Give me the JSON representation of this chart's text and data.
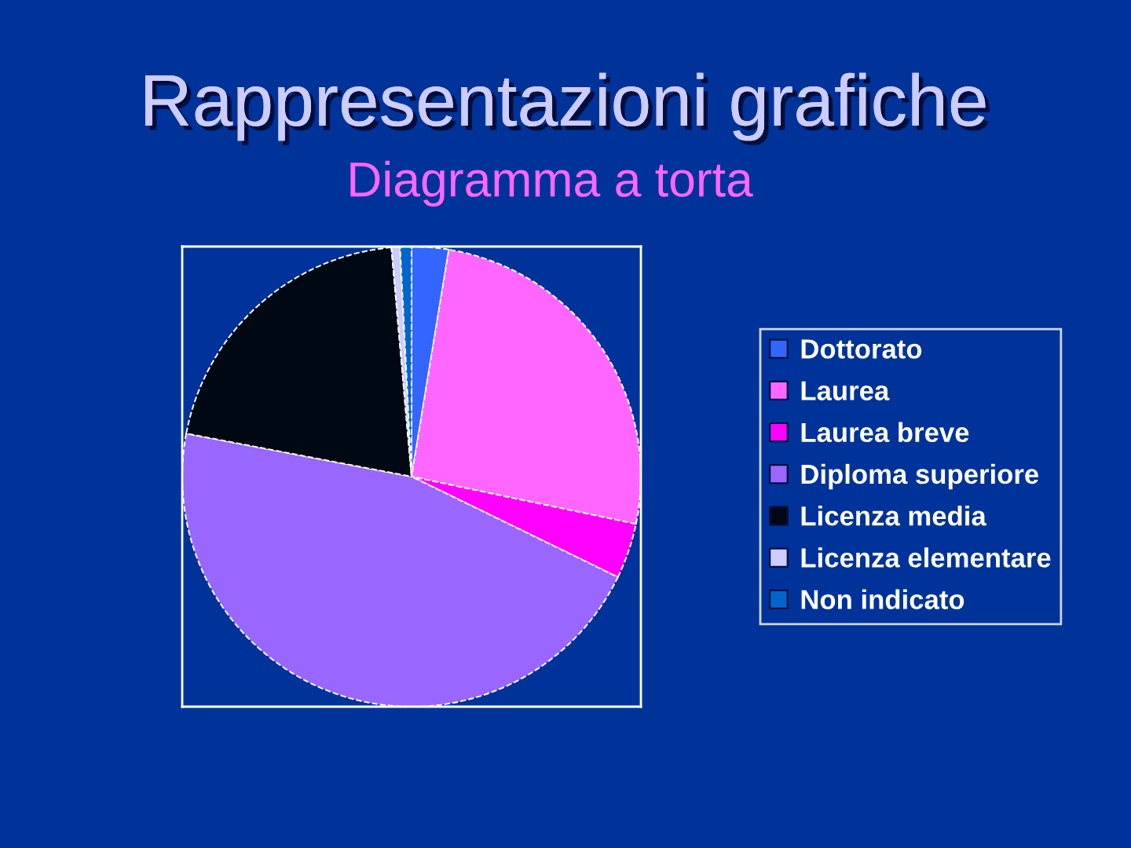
{
  "chart_data": {
    "type": "pie",
    "title": "Rappresentazioni grafiche",
    "subtitle": "Diagramma a torta",
    "categories": [
      "Dottorato",
      "Laurea",
      "Laurea breve",
      "Diploma superiore",
      "Licenza media",
      "Licenza elementare",
      "Non indicato"
    ],
    "values": [
      2.6,
      25.7,
      3.9,
      45.8,
      20.6,
      0.6,
      0.8
    ],
    "colors": [
      "#3366ff",
      "#ff66ff",
      "#ff00ff",
      "#9966ff",
      "#000814",
      "#ccccff",
      "#0066cc"
    ],
    "legend": "right"
  }
}
